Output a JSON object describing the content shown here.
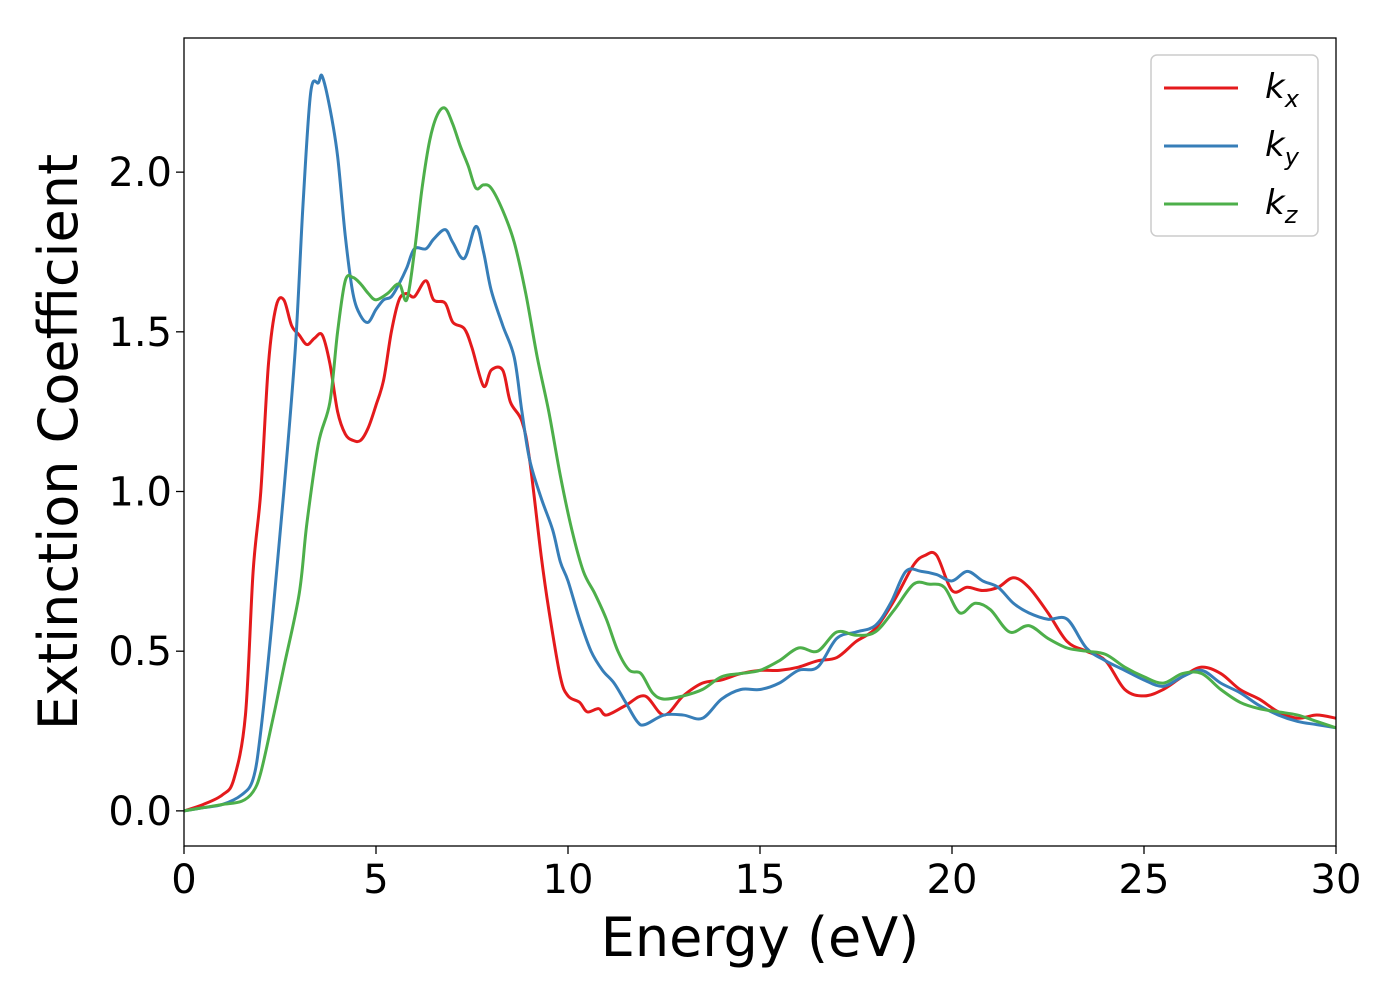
{
  "chart_data": {
    "type": "line",
    "title": "",
    "xlabel": "Energy (eV)",
    "ylabel": "Extinction Coefficient",
    "xlim": [
      0,
      30
    ],
    "ylim": [
      -0.11,
      2.42
    ],
    "xticks": [
      0,
      5,
      10,
      15,
      20,
      25,
      30
    ],
    "xtick_labels": [
      "0",
      "5",
      "10",
      "15",
      "20",
      "25",
      "30"
    ],
    "yticks": [
      0.0,
      0.5,
      1.0,
      1.5,
      2.0
    ],
    "ytick_labels": [
      "0.0",
      "0.5",
      "1.0",
      "1.5",
      "2.0"
    ],
    "grid": false,
    "legend_position": "top-right",
    "series": [
      {
        "name": "k",
        "subscript": "x",
        "color": "#e41a1c",
        "x": [
          0,
          0.5,
          1.0,
          1.3,
          1.6,
          1.8,
          2.0,
          2.2,
          2.4,
          2.6,
          2.8,
          3.0,
          3.2,
          3.4,
          3.6,
          3.8,
          4.0,
          4.2,
          4.4,
          4.6,
          4.8,
          5.0,
          5.2,
          5.4,
          5.6,
          5.8,
          6.0,
          6.3,
          6.5,
          6.8,
          7.0,
          7.3,
          7.5,
          7.8,
          8.0,
          8.3,
          8.5,
          8.8,
          9.0,
          9.3,
          9.5,
          9.8,
          10.0,
          10.3,
          10.5,
          10.8,
          11.0,
          11.5,
          12.0,
          12.5,
          13.0,
          13.5,
          14.0,
          14.5,
          15.0,
          15.5,
          16.0,
          16.5,
          17.0,
          17.5,
          18.0,
          18.5,
          19.0,
          19.3,
          19.6,
          20.0,
          20.4,
          20.8,
          21.2,
          21.6,
          22.0,
          22.5,
          23.0,
          23.5,
          24.0,
          24.5,
          25.0,
          25.5,
          26.0,
          26.5,
          27.0,
          27.5,
          28.0,
          28.5,
          29.0,
          29.5,
          30.0
        ],
        "y": [
          0.0,
          0.02,
          0.05,
          0.1,
          0.3,
          0.75,
          1.0,
          1.4,
          1.58,
          1.6,
          1.52,
          1.49,
          1.46,
          1.48,
          1.49,
          1.4,
          1.25,
          1.18,
          1.16,
          1.16,
          1.2,
          1.27,
          1.35,
          1.5,
          1.6,
          1.62,
          1.61,
          1.66,
          1.6,
          1.59,
          1.53,
          1.51,
          1.45,
          1.33,
          1.38,
          1.38,
          1.28,
          1.22,
          1.1,
          0.8,
          0.63,
          0.42,
          0.36,
          0.34,
          0.31,
          0.32,
          0.3,
          0.33,
          0.36,
          0.3,
          0.36,
          0.4,
          0.41,
          0.43,
          0.44,
          0.44,
          0.45,
          0.47,
          0.48,
          0.53,
          0.57,
          0.66,
          0.77,
          0.8,
          0.8,
          0.69,
          0.7,
          0.69,
          0.7,
          0.73,
          0.7,
          0.62,
          0.53,
          0.5,
          0.47,
          0.38,
          0.36,
          0.38,
          0.42,
          0.45,
          0.43,
          0.38,
          0.35,
          0.31,
          0.29,
          0.3,
          0.29
        ]
      },
      {
        "name": "k",
        "subscript": "y",
        "color": "#377eb8",
        "x": [
          0,
          0.5,
          1.0,
          1.5,
          1.8,
          2.0,
          2.3,
          2.6,
          2.9,
          3.1,
          3.3,
          3.5,
          3.6,
          3.8,
          4.0,
          4.2,
          4.4,
          4.6,
          4.8,
          5.0,
          5.2,
          5.4,
          5.6,
          5.8,
          6.0,
          6.3,
          6.5,
          6.8,
          7.0,
          7.3,
          7.6,
          7.8,
          8.0,
          8.3,
          8.6,
          8.8,
          9.0,
          9.3,
          9.6,
          9.8,
          10.0,
          10.3,
          10.6,
          10.9,
          11.2,
          11.5,
          11.8,
          12.0,
          12.5,
          13.0,
          13.5,
          14.0,
          14.5,
          15.0,
          15.5,
          16.0,
          16.5,
          17.0,
          17.5,
          18.0,
          18.4,
          18.8,
          19.2,
          19.6,
          20.0,
          20.4,
          20.8,
          21.2,
          21.6,
          22.0,
          22.5,
          23.0,
          23.5,
          24.0,
          24.5,
          25.0,
          25.5,
          26.0,
          26.5,
          27.0,
          27.5,
          28.0,
          28.5,
          29.0,
          29.5,
          30.0
        ],
        "y": [
          0.0,
          0.01,
          0.02,
          0.05,
          0.1,
          0.25,
          0.6,
          1.0,
          1.45,
          1.9,
          2.25,
          2.28,
          2.3,
          2.2,
          2.05,
          1.8,
          1.62,
          1.55,
          1.53,
          1.57,
          1.6,
          1.61,
          1.65,
          1.7,
          1.76,
          1.76,
          1.79,
          1.82,
          1.78,
          1.73,
          1.83,
          1.75,
          1.63,
          1.52,
          1.42,
          1.25,
          1.1,
          0.98,
          0.88,
          0.78,
          0.72,
          0.6,
          0.5,
          0.44,
          0.4,
          0.34,
          0.28,
          0.27,
          0.3,
          0.3,
          0.29,
          0.35,
          0.38,
          0.38,
          0.4,
          0.44,
          0.45,
          0.54,
          0.56,
          0.58,
          0.65,
          0.75,
          0.75,
          0.74,
          0.72,
          0.75,
          0.72,
          0.7,
          0.65,
          0.62,
          0.6,
          0.6,
          0.51,
          0.47,
          0.44,
          0.41,
          0.39,
          0.42,
          0.44,
          0.4,
          0.37,
          0.33,
          0.3,
          0.28,
          0.27,
          0.26
        ]
      },
      {
        "name": "k",
        "subscript": "z",
        "color": "#4daf4a",
        "x": [
          0,
          0.5,
          1.0,
          1.5,
          1.8,
          2.0,
          2.3,
          2.6,
          3.0,
          3.2,
          3.5,
          3.8,
          4.0,
          4.2,
          4.4,
          4.6,
          4.8,
          5.0,
          5.3,
          5.6,
          5.8,
          6.0,
          6.2,
          6.4,
          6.6,
          6.8,
          7.0,
          7.2,
          7.4,
          7.6,
          7.8,
          8.0,
          8.3,
          8.6,
          8.9,
          9.2,
          9.5,
          9.8,
          10.1,
          10.4,
          10.7,
          11.0,
          11.3,
          11.6,
          11.9,
          12.2,
          12.5,
          13.0,
          13.5,
          14.0,
          14.5,
          15.0,
          15.5,
          16.0,
          16.5,
          17.0,
          17.5,
          18.0,
          18.5,
          19.0,
          19.4,
          19.8,
          20.2,
          20.6,
          21.0,
          21.5,
          22.0,
          22.5,
          23.0,
          23.5,
          24.0,
          24.5,
          25.0,
          25.5,
          26.0,
          26.5,
          27.0,
          27.5,
          28.0,
          28.5,
          29.0,
          29.5,
          30.0
        ],
        "y": [
          0.0,
          0.01,
          0.02,
          0.03,
          0.06,
          0.12,
          0.28,
          0.45,
          0.68,
          0.9,
          1.15,
          1.28,
          1.5,
          1.66,
          1.67,
          1.65,
          1.62,
          1.6,
          1.62,
          1.65,
          1.6,
          1.75,
          1.95,
          2.1,
          2.18,
          2.2,
          2.15,
          2.08,
          2.02,
          1.95,
          1.96,
          1.95,
          1.88,
          1.78,
          1.62,
          1.42,
          1.25,
          1.05,
          0.88,
          0.75,
          0.68,
          0.6,
          0.5,
          0.44,
          0.43,
          0.37,
          0.35,
          0.36,
          0.38,
          0.42,
          0.43,
          0.44,
          0.47,
          0.51,
          0.5,
          0.56,
          0.55,
          0.56,
          0.63,
          0.71,
          0.71,
          0.7,
          0.62,
          0.65,
          0.63,
          0.56,
          0.58,
          0.54,
          0.51,
          0.5,
          0.49,
          0.45,
          0.42,
          0.4,
          0.43,
          0.43,
          0.38,
          0.34,
          0.32,
          0.31,
          0.3,
          0.28,
          0.26
        ]
      }
    ]
  }
}
